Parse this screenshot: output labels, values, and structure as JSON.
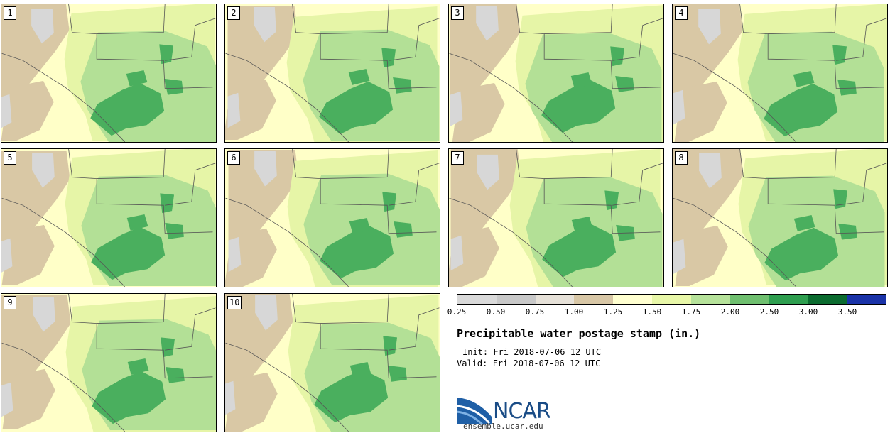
{
  "title": "Precipitable water postage stamp (in.)",
  "init": "Init: Fri 2018-07-06 12 UTC",
  "valid": "Valid: Fri 2018-07-06 12 UTC",
  "logo": {
    "name": "NCAR",
    "url": "ensemble.ucar.edu"
  },
  "members": [
    "1",
    "2",
    "3",
    "4",
    "5",
    "6",
    "7",
    "8",
    "9",
    "10"
  ],
  "colorbar": {
    "ticks": [
      "0.25",
      "0.50",
      "0.75",
      "1.00",
      "1.25",
      "1.50",
      "1.75",
      "2.00",
      "2.50",
      "3.00",
      "3.50"
    ],
    "colors": [
      "#d9d9d9",
      "#c8c8c8",
      "#e6e1d8",
      "#d8c7a6",
      "#ffffd0",
      "#e8f7a8",
      "#b6e29a",
      "#6fbf6f",
      "#2e9e4f",
      "#0b6b2f",
      "#1a33a8"
    ]
  },
  "palette": {
    "tan": "#d9c8a5",
    "gray": "#d7d7d7",
    "pale_yellow": "#ffffc8",
    "light_green": "#e6f5a7",
    "med_green": "#b3e096",
    "dark_green": "#4aaf5e"
  }
}
